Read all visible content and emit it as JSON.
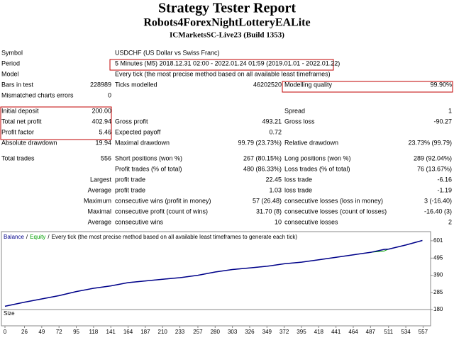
{
  "header": {
    "title": "Strategy Tester Report",
    "subtitle": "Robots4ForexNightLotteryEALite",
    "server": "ICMarketsSC-Live23 (Build 1353)"
  },
  "table": {
    "sections": [
      [
        {
          "label": "Symbol",
          "text": "USDCHF (US Dollar vs Swiss Franc)"
        },
        {
          "label": "Period",
          "text": "5 Minutes (M5) 2018.12.31 02:00 - 2022.01.24 01:59 (2019.01.01 - 2022.01.22)"
        },
        {
          "label": "Model",
          "text": "Every tick (the most precise method based on all available least timeframes)"
        },
        {
          "label": "Bars in test",
          "value": "228989",
          "label2": "Ticks modelled",
          "value2": "46202520",
          "label3": "Modelling quality",
          "value3": "99.90%"
        },
        {
          "label": "Mismatched charts errors",
          "value": "0"
        }
      ],
      [
        {
          "label": "Initial deposit",
          "value": "200.00",
          "label3": "Spread",
          "value3": "1"
        },
        {
          "label": "Total net profit",
          "value": "402.94",
          "label2": "Gross profit",
          "value2": "493.21",
          "label3": "Gross loss",
          "value3": "-90.27"
        },
        {
          "label": "Profit factor",
          "value": "5.46",
          "label2": "Expected payoff",
          "value2": "0.72"
        },
        {
          "label": "Absolute drawdown",
          "value": "19.94",
          "label2": "Maximal drawdown",
          "value2": "99.79 (23.73%)",
          "label3": "Relative drawdown",
          "value3": "23.73% (99.79)"
        }
      ],
      [
        {
          "label": "Total trades",
          "value": "556",
          "label2": "Short positions (won %)",
          "value2": "267 (80.15%)",
          "label3": "Long positions (won %)",
          "value3": "289 (92.04%)"
        },
        {
          "label2": "Profit trades (% of total)",
          "value2": "480 (86.33%)",
          "label3": "Loss trades (% of total)",
          "value3": "76 (13.67%)"
        },
        {
          "label_right": "Largest",
          "label2": "profit trade",
          "value2": "22.45",
          "label3": "loss trade",
          "value3": "-6.16"
        },
        {
          "label_right": "Average",
          "label2": "profit trade",
          "value2": "1.03",
          "label3": "loss trade",
          "value3": "-1.19"
        },
        {
          "label_right": "Maximum",
          "label2": "consecutive wins (profit in money)",
          "value2": "57 (26.48)",
          "label3": "consecutive losses (loss in money)",
          "value3": "3 (-16.40)"
        },
        {
          "label_right": "Maximal",
          "label2": "consecutive profit (count of wins)",
          "value2": "31.70 (8)",
          "label3": "consecutive losses (count of losses)",
          "value3": "-16.40 (3)"
        },
        {
          "label_right": "Average",
          "label2": "consecutive wins",
          "value2": "10",
          "label3": "consecutive losses",
          "value3": "2"
        }
      ]
    ]
  },
  "chart_data": {
    "type": "line",
    "separator": "/",
    "note": "Every tick (the most precise method based on all available least timeframes to generate each tick)",
    "size_label": "Size",
    "x": [
      0,
      26,
      49,
      72,
      95,
      118,
      141,
      164,
      187,
      210,
      233,
      257,
      280,
      303,
      326,
      349,
      372,
      395,
      418,
      441,
      464,
      487,
      505,
      511,
      534,
      556
    ],
    "series": [
      {
        "name": "Balance",
        "color": "#00008b",
        "values": [
          200,
          225,
          245,
          265,
          290,
          310,
          325,
          345,
          355,
          365,
          375,
          390,
          410,
          425,
          435,
          445,
          460,
          470,
          485,
          500,
          515,
          530,
          548,
          550,
          575,
          603
        ]
      },
      {
        "name": "Equity",
        "color": "#00a000",
        "values": [
          200,
          225,
          245,
          265,
          290,
          310,
          325,
          345,
          355,
          365,
          375,
          390,
          410,
          425,
          435,
          445,
          460,
          470,
          485,
          500,
          515,
          530,
          538,
          550,
          575,
          603
        ]
      }
    ],
    "xlim": [
      0,
      567
    ],
    "xticks": [
      0,
      26,
      49,
      72,
      95,
      118,
      141,
      164,
      187,
      210,
      233,
      257,
      280,
      303,
      326,
      349,
      372,
      395,
      418,
      441,
      464,
      487,
      511,
      534,
      557
    ],
    "ylim": [
      180,
      644
    ],
    "yticks": [
      180,
      285,
      390,
      495,
      601
    ]
  }
}
